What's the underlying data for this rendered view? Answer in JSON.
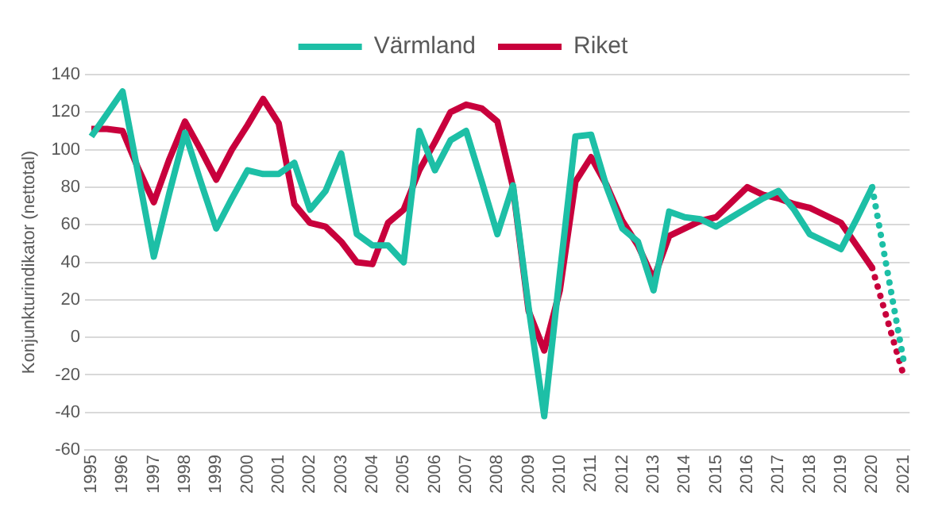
{
  "chart_data": {
    "type": "line",
    "ylabel": "Konjunkturindikator (nettotal)",
    "x": [
      1995,
      1995.5,
      1996,
      1996.5,
      1997,
      1997.5,
      1998,
      1998.5,
      1999,
      1999.5,
      2000,
      2000.5,
      2001,
      2001.5,
      2002,
      2002.5,
      2003,
      2003.5,
      2004,
      2004.5,
      2005,
      2005.5,
      2006,
      2006.5,
      2007,
      2007.5,
      2008,
      2008.5,
      2009,
      2009.5,
      2010,
      2010.5,
      2011,
      2011.5,
      2012,
      2012.5,
      2013,
      2013.5,
      2014,
      2014.5,
      2015,
      2015.5,
      2016,
      2016.5,
      2017,
      2017.5,
      2018,
      2018.5,
      2019,
      2019.5,
      2020,
      2021
    ],
    "series": [
      {
        "name": "Värmland",
        "color": "#1dbfa6",
        "line_style": "solid",
        "values": [
          107,
          119,
          131,
          87,
          43,
          77,
          109,
          83,
          58,
          74,
          89,
          87,
          87,
          93,
          68,
          78,
          98,
          55,
          49,
          49,
          40,
          110,
          89,
          105,
          110,
          83,
          55,
          81,
          16,
          -42,
          34,
          107,
          108,
          80,
          58,
          51,
          25,
          67,
          64,
          63,
          59,
          64,
          69,
          74,
          78,
          68,
          55,
          51,
          47,
          63,
          80,
          null
        ]
      },
      {
        "name": "Riket",
        "color": "#c8003c",
        "line_style": "solid",
        "values": [
          111,
          111,
          110,
          90,
          72,
          95,
          115,
          100,
          84,
          100,
          113,
          127,
          114,
          71,
          61,
          59,
          51,
          40,
          39,
          61,
          68,
          89,
          104,
          120,
          124,
          122,
          115,
          80,
          14,
          -7,
          25,
          83,
          96,
          81,
          62,
          49,
          31,
          54,
          58,
          62,
          64,
          72,
          80,
          76,
          74,
          71,
          69,
          65,
          61,
          49,
          37,
          null
        ]
      },
      {
        "color": "#1dbfa6",
        "line_style": "dotted",
        "values": [
          null,
          null,
          null,
          null,
          null,
          null,
          null,
          null,
          null,
          null,
          null,
          null,
          null,
          null,
          null,
          null,
          null,
          null,
          null,
          null,
          null,
          null,
          null,
          null,
          null,
          null,
          null,
          null,
          null,
          null,
          null,
          null,
          null,
          null,
          null,
          null,
          null,
          null,
          null,
          null,
          null,
          null,
          null,
          null,
          null,
          null,
          null,
          null,
          null,
          null,
          80,
          -12
        ]
      },
      {
        "color": "#c8003c",
        "line_style": "dotted",
        "values": [
          null,
          null,
          null,
          null,
          null,
          null,
          null,
          null,
          null,
          null,
          null,
          null,
          null,
          null,
          null,
          null,
          null,
          null,
          null,
          null,
          null,
          null,
          null,
          null,
          null,
          null,
          null,
          null,
          null,
          null,
          null,
          null,
          null,
          null,
          null,
          null,
          null,
          null,
          null,
          null,
          null,
          null,
          null,
          null,
          null,
          null,
          null,
          null,
          null,
          null,
          37,
          -20
        ]
      }
    ],
    "xlim": [
      1994.8,
      2021.2
    ],
    "xticks": [
      1995,
      1996,
      1997,
      1998,
      1999,
      2000,
      2001,
      2002,
      2003,
      2004,
      2005,
      2006,
      2007,
      2008,
      2009,
      2010,
      2011,
      2012,
      2013,
      2014,
      2015,
      2016,
      2017,
      2018,
      2019,
      2020,
      2021
    ],
    "ylim": [
      -60,
      140
    ],
    "yticks": [
      -60,
      -40,
      -20,
      0,
      20,
      40,
      60,
      80,
      100,
      120,
      140
    ],
    "grid": "y",
    "legend": "top",
    "marker": "none"
  }
}
